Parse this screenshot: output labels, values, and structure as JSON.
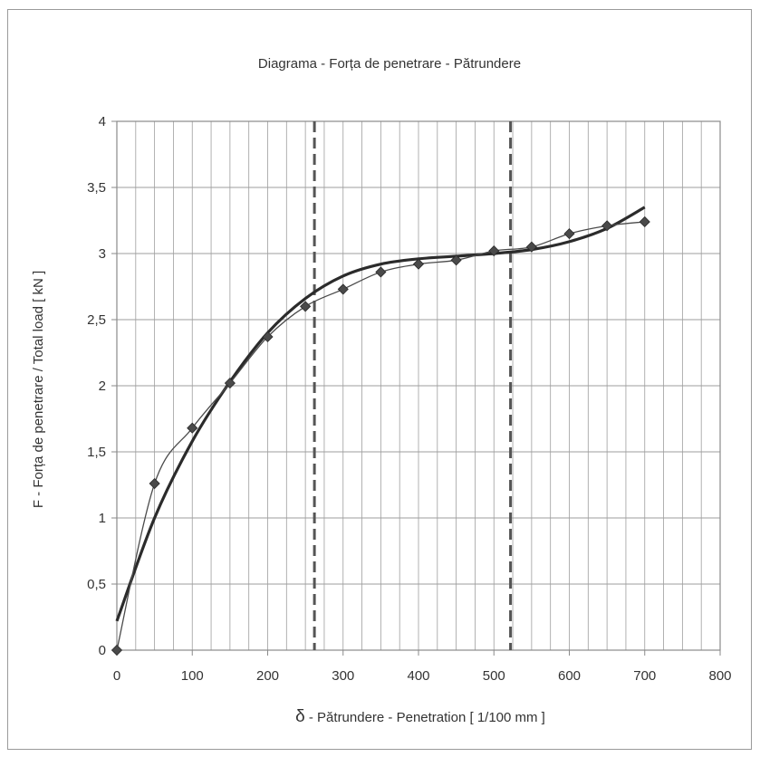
{
  "chart_data": {
    "type": "line",
    "title": "Diagrama - Forța de penetrare - Pătrundere",
    "xlabel_symbol": "δ",
    "xlabel": " - Pătrundere - Penetration  [ 1/100  mm ]",
    "ylabel": "F - Forța de penetrare / Total load   [ kN ]",
    "xlim": [
      0,
      800
    ],
    "ylim": [
      0,
      4
    ],
    "x_ticks": [
      0,
      100,
      200,
      300,
      400,
      500,
      600,
      700,
      800
    ],
    "y_ticks": [
      0,
      0.5,
      1,
      1.5,
      2,
      2.5,
      3,
      3.5,
      4
    ],
    "x_tick_labels": [
      "0",
      "100",
      "200",
      "300",
      "400",
      "500",
      "600",
      "700",
      "800"
    ],
    "y_tick_labels": [
      "0",
      "0,5",
      "1",
      "1,5",
      "2",
      "2,5",
      "3",
      "3,5",
      "4"
    ],
    "x_minor_step": 25,
    "y_major_step": 0.5,
    "grid": true,
    "series": [
      {
        "marker": "diamond",
        "color": "#4a4a4a",
        "x": [
          0,
          50,
          100,
          150,
          200,
          250,
          300,
          350,
          400,
          450,
          500,
          550,
          600,
          650,
          700
        ],
        "y": [
          0,
          1.26,
          1.68,
          2.02,
          2.37,
          2.6,
          2.73,
          2.86,
          2.92,
          2.95,
          3.02,
          3.05,
          3.15,
          3.21,
          3.24
        ]
      }
    ],
    "trend_curve": {
      "color": "#2b2b2b",
      "x": [
        0,
        50,
        100,
        150,
        200,
        250,
        300,
        350,
        400,
        450,
        500,
        550,
        600,
        650,
        700
      ],
      "y": [
        0.22,
        1.0,
        1.58,
        2.03,
        2.4,
        2.66,
        2.83,
        2.92,
        2.96,
        2.98,
        3.0,
        3.03,
        3.09,
        3.19,
        3.35
      ]
    },
    "vertical_dashed_lines_x": [
      262,
      522
    ],
    "colors": {
      "grid": "#9e9e9e",
      "axis": "#8a8a8a",
      "dashed": "#555555",
      "text": "#333333"
    }
  }
}
